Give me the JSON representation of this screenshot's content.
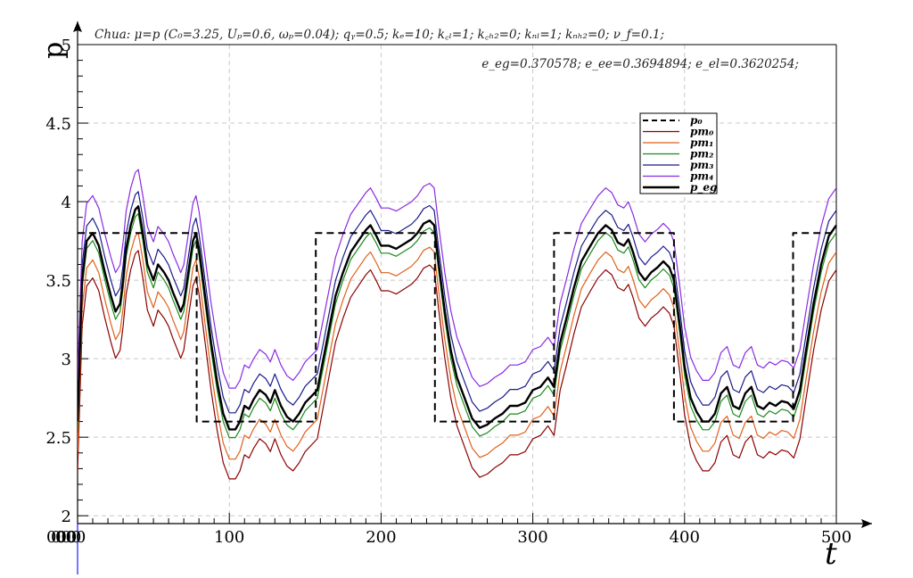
{
  "chart_data": {
    "type": "line",
    "title_line1": "Chua: μ=p (C₀=3.25, Uₚ=0.6, ωₚ=0.04);      qᵧ=0.5; kₑ=10; k꜀ₗ=1; k꜀ₕ₂=0; kₙₗ=1; kₙₕ₂=0; ν_f=0.1;",
    "title_line2": "e_eg=0.370578; e_ee=0.3694894; e_el=0.3620254;",
    "xlabel": "t",
    "ylabel": "p",
    "xlim": [
      0,
      500
    ],
    "ylim": [
      1.95,
      5.0
    ],
    "x_ticks": [
      0,
      100,
      200,
      300,
      400,
      500
    ],
    "x_tick_labels": [
      "0",
      "100",
      "200",
      "300",
      "400",
      "500"
    ],
    "origin_labels": [
      "000",
      "000",
      "000"
    ],
    "y_ticks": [
      2,
      2.5,
      3,
      3.5,
      4,
      4.5,
      5
    ],
    "y_tick_labels": [
      "2",
      "2.5",
      "3",
      "3.5",
      "4",
      "4.5",
      "5"
    ],
    "grid": true,
    "legend_position": "upper-right",
    "legend": [
      "p₀",
      "pm₀",
      "pm₁",
      "pm₂",
      "pm₃",
      "pm₄",
      "p_eg"
    ],
    "series": [
      {
        "name": "p₀",
        "color": "#000000",
        "dashed": true,
        "width": 2,
        "points": [
          [
            0,
            3.8
          ],
          [
            78.5,
            3.8
          ],
          [
            78.5,
            2.6
          ],
          [
            157,
            2.6
          ],
          [
            157,
            3.8
          ],
          [
            235.5,
            3.8
          ],
          [
            235.5,
            2.6
          ],
          [
            314,
            2.6
          ],
          [
            314,
            3.8
          ],
          [
            393,
            3.8
          ],
          [
            393,
            2.6
          ],
          [
            471.5,
            2.6
          ],
          [
            471.5,
            3.8
          ],
          [
            500,
            3.8
          ]
        ]
      },
      {
        "name": "pm₀",
        "color": "#8b0000",
        "offset": -0.3,
        "width": 1.2
      },
      {
        "name": "pm₁",
        "color": "#e0601a",
        "offset": -0.18,
        "width": 1.2
      },
      {
        "name": "pm₂",
        "color": "#1a8a1a",
        "offset": -0.05,
        "width": 1.2
      },
      {
        "name": "pm₃",
        "color": "#1a1a8a",
        "offset": 0.1,
        "width": 1.2
      },
      {
        "name": "pm₄",
        "color": "#8a2be2",
        "offset": 0.25,
        "width": 1.2
      },
      {
        "name": "p_eg",
        "color": "#000000",
        "offset": 0.0,
        "width": 2.4
      }
    ],
    "base_curve": [
      [
        0,
        2.6
      ],
      [
        3,
        3.5
      ],
      [
        6,
        3.75
      ],
      [
        10,
        3.8
      ],
      [
        14,
        3.72
      ],
      [
        18,
        3.55
      ],
      [
        22,
        3.4
      ],
      [
        25,
        3.3
      ],
      [
        28,
        3.35
      ],
      [
        30,
        3.5
      ],
      [
        32,
        3.7
      ],
      [
        35,
        3.85
      ],
      [
        38,
        3.95
      ],
      [
        40,
        3.97
      ],
      [
        43,
        3.8
      ],
      [
        46,
        3.6
      ],
      [
        50,
        3.5
      ],
      [
        53,
        3.6
      ],
      [
        57,
        3.55
      ],
      [
        60,
        3.5
      ],
      [
        63,
        3.42
      ],
      [
        66,
        3.35
      ],
      [
        68,
        3.3
      ],
      [
        70,
        3.35
      ],
      [
        73,
        3.55
      ],
      [
        76,
        3.75
      ],
      [
        78,
        3.8
      ],
      [
        80,
        3.7
      ],
      [
        84,
        3.4
      ],
      [
        88,
        3.1
      ],
      [
        92,
        2.85
      ],
      [
        96,
        2.65
      ],
      [
        100,
        2.55
      ],
      [
        104,
        2.55
      ],
      [
        107,
        2.6
      ],
      [
        110,
        2.7
      ],
      [
        113,
        2.68
      ],
      [
        116,
        2.74
      ],
      [
        120,
        2.8
      ],
      [
        124,
        2.77
      ],
      [
        127,
        2.72
      ],
      [
        130,
        2.8
      ],
      [
        134,
        2.7
      ],
      [
        138,
        2.63
      ],
      [
        142,
        2.6
      ],
      [
        146,
        2.65
      ],
      [
        150,
        2.72
      ],
      [
        154,
        2.76
      ],
      [
        158,
        2.8
      ],
      [
        162,
        3.0
      ],
      [
        166,
        3.2
      ],
      [
        170,
        3.4
      ],
      [
        175,
        3.55
      ],
      [
        180,
        3.68
      ],
      [
        185,
        3.75
      ],
      [
        190,
        3.82
      ],
      [
        193,
        3.85
      ],
      [
        197,
        3.78
      ],
      [
        200,
        3.72
      ],
      [
        205,
        3.72
      ],
      [
        210,
        3.7
      ],
      [
        215,
        3.73
      ],
      [
        220,
        3.76
      ],
      [
        224,
        3.8
      ],
      [
        228,
        3.86
      ],
      [
        232,
        3.88
      ],
      [
        235,
        3.85
      ],
      [
        238,
        3.6
      ],
      [
        242,
        3.3
      ],
      [
        246,
        3.05
      ],
      [
        250,
        2.88
      ],
      [
        255,
        2.75
      ],
      [
        260,
        2.62
      ],
      [
        265,
        2.56
      ],
      [
        270,
        2.58
      ],
      [
        275,
        2.62
      ],
      [
        280,
        2.65
      ],
      [
        285,
        2.7
      ],
      [
        290,
        2.7
      ],
      [
        295,
        2.72
      ],
      [
        300,
        2.8
      ],
      [
        305,
        2.82
      ],
      [
        310,
        2.88
      ],
      [
        314,
        2.82
      ],
      [
        318,
        3.1
      ],
      [
        322,
        3.25
      ],
      [
        327,
        3.45
      ],
      [
        332,
        3.62
      ],
      [
        338,
        3.72
      ],
      [
        343,
        3.8
      ],
      [
        348,
        3.85
      ],
      [
        352,
        3.82
      ],
      [
        356,
        3.74
      ],
      [
        360,
        3.72
      ],
      [
        363,
        3.76
      ],
      [
        366,
        3.68
      ],
      [
        370,
        3.55
      ],
      [
        374,
        3.5
      ],
      [
        378,
        3.55
      ],
      [
        382,
        3.58
      ],
      [
        386,
        3.62
      ],
      [
        390,
        3.58
      ],
      [
        393,
        3.5
      ],
      [
        397,
        3.2
      ],
      [
        400,
        2.95
      ],
      [
        404,
        2.75
      ],
      [
        408,
        2.66
      ],
      [
        412,
        2.6
      ],
      [
        416,
        2.6
      ],
      [
        420,
        2.65
      ],
      [
        424,
        2.78
      ],
      [
        428,
        2.82
      ],
      [
        432,
        2.7
      ],
      [
        436,
        2.68
      ],
      [
        440,
        2.78
      ],
      [
        444,
        2.82
      ],
      [
        448,
        2.7
      ],
      [
        452,
        2.68
      ],
      [
        456,
        2.72
      ],
      [
        460,
        2.7
      ],
      [
        464,
        2.73
      ],
      [
        468,
        2.72
      ],
      [
        472,
        2.68
      ],
      [
        476,
        2.8
      ],
      [
        480,
        3.05
      ],
      [
        485,
        3.35
      ],
      [
        490,
        3.6
      ],
      [
        495,
        3.78
      ],
      [
        500,
        3.85
      ]
    ]
  }
}
